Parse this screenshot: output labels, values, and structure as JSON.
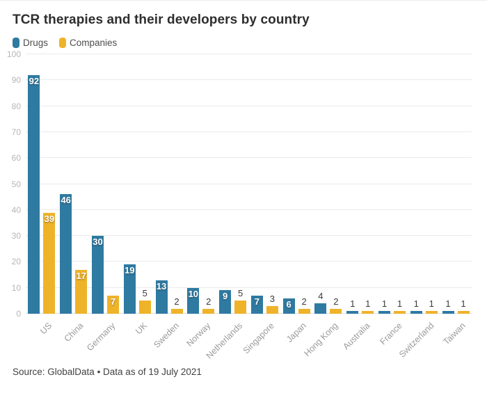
{
  "title": "TCR therapies and their developers by country",
  "source": "Source: GlobalData • Data as of 19 July 2021",
  "chart_data": {
    "type": "bar",
    "title": "TCR therapies and their developers by country",
    "categories": [
      "US",
      "China",
      "Germany",
      "UK",
      "Sweden",
      "Norway",
      "Netherlands",
      "Singapore",
      "Japan",
      "Hong Kong",
      "Australia",
      "France",
      "Switzerland",
      "Taiwan"
    ],
    "series": [
      {
        "name": "Drugs",
        "color": "#2e7aa1",
        "values": [
          92,
          46,
          30,
          19,
          13,
          10,
          9,
          7,
          6,
          4,
          1,
          1,
          1,
          1
        ]
      },
      {
        "name": "Companies",
        "color": "#efb32a",
        "values": [
          39,
          17,
          7,
          5,
          2,
          2,
          5,
          3,
          2,
          2,
          1,
          1,
          1,
          1
        ]
      }
    ],
    "xlabel": "",
    "ylabel": "",
    "ylim": [
      0,
      100
    ],
    "yticks": [
      0,
      10,
      20,
      30,
      40,
      50,
      60,
      70,
      80,
      90,
      100
    ],
    "grid": true,
    "legend_position": "top-left",
    "value_labels": true,
    "value_label_inside_threshold": 6
  },
  "style": {
    "grid_color": "#eaeaea",
    "ytick_color": "#b5b5b5",
    "xlabel_color": "#9b9b9b",
    "title_color": "#2e2e2e",
    "source_color": "#414141"
  }
}
